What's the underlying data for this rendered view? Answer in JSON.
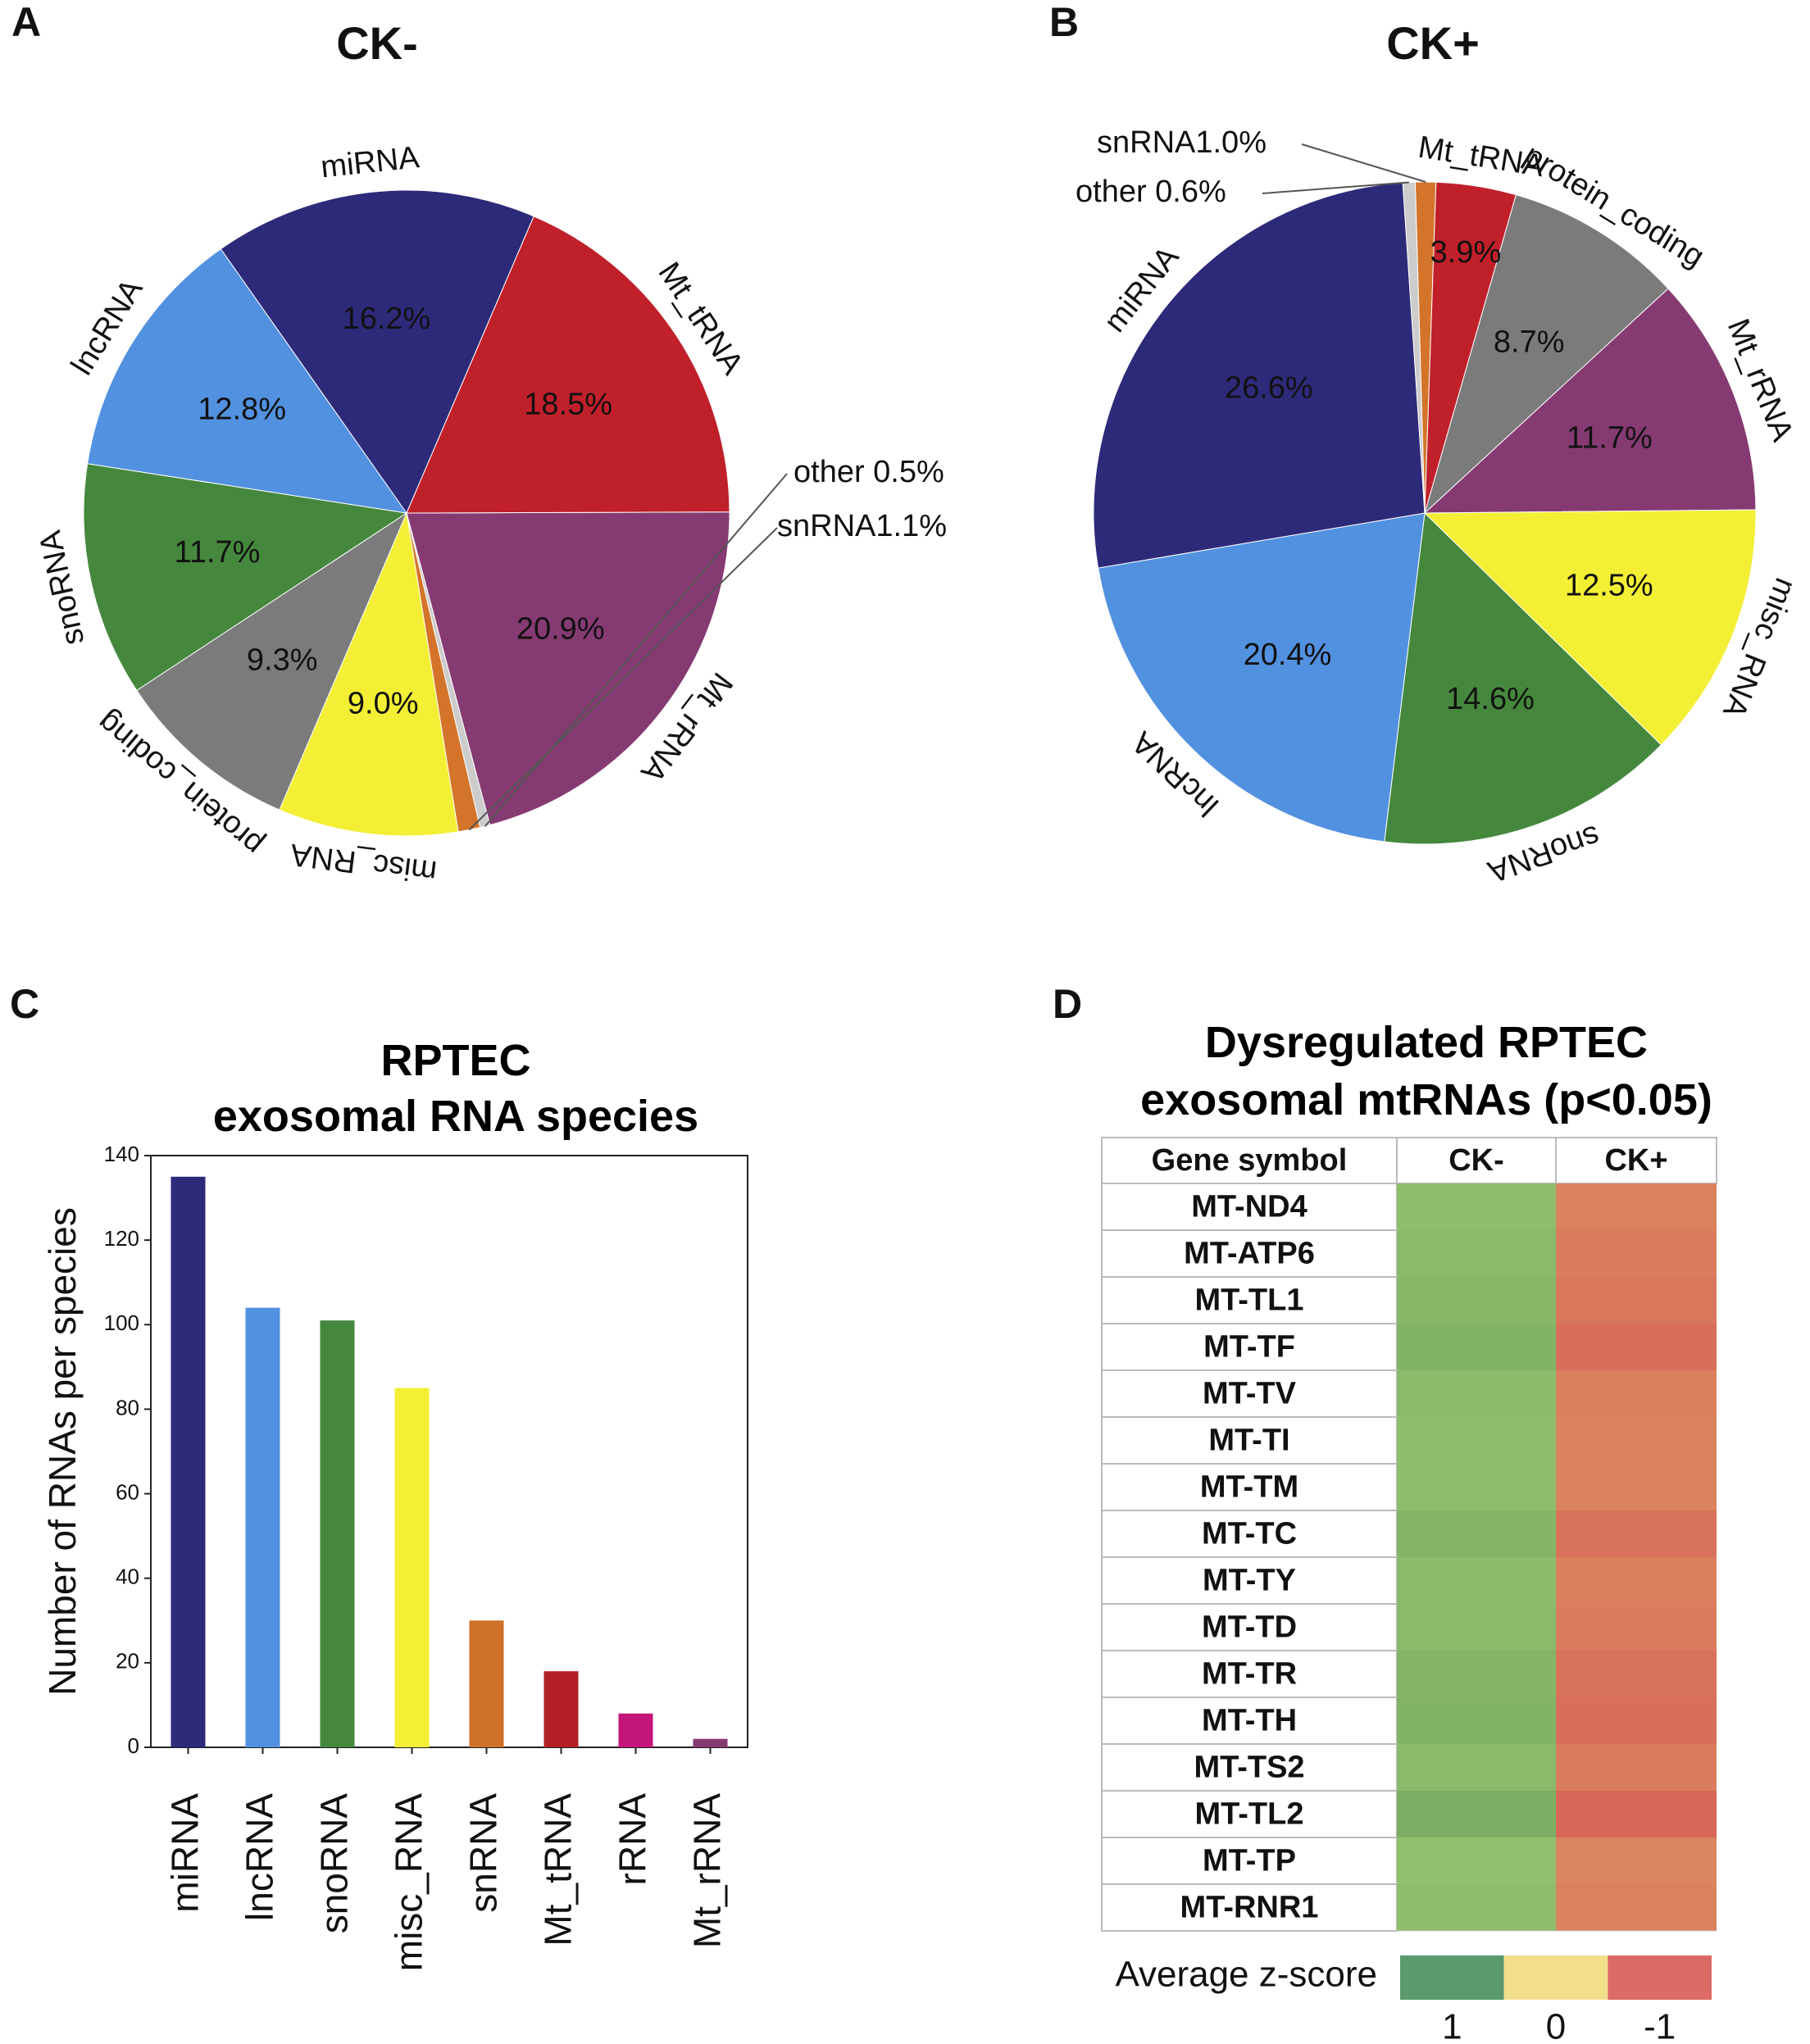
{
  "panels": {
    "a": {
      "letter": "A",
      "title": "CK-"
    },
    "b": {
      "letter": "B",
      "title": "CK+"
    },
    "c": {
      "letter": "C"
    },
    "d": {
      "letter": "D"
    }
  },
  "chart_data": [
    {
      "id": "pie_ck_minus",
      "type": "pie",
      "title": "CK-",
      "slices": [
        {
          "name": "Mt_rRNA",
          "value": 20.9,
          "label": "20.9%",
          "color": "#863a72"
        },
        {
          "name": "other",
          "value": 0.5,
          "label": "0.5%",
          "color": "#cccccc",
          "outside_text": "other 0.5%"
        },
        {
          "name": "snRNA",
          "value": 1.1,
          "label": "1.1%",
          "color": "#d3742a",
          "outside_text": "snRNA1.1%"
        },
        {
          "name": "misc_RNA",
          "value": 9.0,
          "label": "9.0%",
          "color": "#f3ef35"
        },
        {
          "name": "protein_coding",
          "value": 9.3,
          "label": "9.3%",
          "color": "#7b7b7b"
        },
        {
          "name": "snoRNA",
          "value": 11.7,
          "label": "11.7%",
          "color": "#45883d"
        },
        {
          "name": "lncRNA",
          "value": 12.8,
          "label": "12.8%",
          "color": "#5291df"
        },
        {
          "name": "miRNA",
          "value": 16.2,
          "label": "16.2%",
          "color": "#2e2a7a"
        },
        {
          "name": "Mt_tRNA",
          "value": 18.5,
          "label": "18.5%",
          "color": "#c0202a"
        }
      ]
    },
    {
      "id": "pie_ck_plus",
      "type": "pie",
      "title": "CK+",
      "slices": [
        {
          "name": "protein_coding",
          "value": 8.7,
          "label": "8.7%",
          "color": "#7b7b7b"
        },
        {
          "name": "Mt_rRNA",
          "value": 11.7,
          "label": "11.7%",
          "color": "#863a72"
        },
        {
          "name": "misc_RNA",
          "value": 12.5,
          "label": "12.5%",
          "color": "#f3ef35"
        },
        {
          "name": "snoRNA",
          "value": 14.6,
          "label": "14.6%",
          "color": "#45883d"
        },
        {
          "name": "lncRNA",
          "value": 20.4,
          "label": "20.4%",
          "color": "#5291df"
        },
        {
          "name": "miRNA",
          "value": 26.6,
          "label": "26.6%",
          "color": "#2e2a7a"
        },
        {
          "name": "other",
          "value": 0.6,
          "label": "0.6%",
          "color": "#cccccc",
          "outside_text": "other 0.6%"
        },
        {
          "name": "snRNA",
          "value": 1.0,
          "label": "1.0%",
          "color": "#d3742a",
          "outside_text": "snRNA1.0%"
        },
        {
          "name": "Mt_tRNA",
          "value": 3.9,
          "label": "3.9%",
          "color": "#c0202a"
        }
      ]
    },
    {
      "id": "bar_species",
      "type": "bar",
      "title": "RPTEC exosomal RNA species",
      "title_lines": [
        "RPTEC",
        "exosomal RNA species"
      ],
      "ylabel": "Number of RNAs per species",
      "xlabel": "",
      "ylim": [
        0,
        140
      ],
      "yticks": [
        0,
        20,
        40,
        60,
        80,
        100,
        120,
        140
      ],
      "categories": [
        "miRNA",
        "lncRNA",
        "snoRNA",
        "misc_RNA",
        "snRNA",
        "Mt_tRNA",
        "rRNA",
        "Mt_rRNA"
      ],
      "values": [
        135,
        104,
        101,
        85,
        30,
        18,
        8,
        2
      ],
      "colors": [
        "#2e2a7a",
        "#5291df",
        "#45883d",
        "#f3ef35",
        "#cf7128",
        "#b32028",
        "#c4157a",
        "#863a72"
      ]
    },
    {
      "id": "heatmap_mtrna",
      "type": "heatmap",
      "title": "Dysregulated RPTEC exosomal mtRNAs (p<0.05)",
      "title_lines": [
        "Dysregulated RPTEC",
        "exosomal mtRNAs (p<0.05)"
      ],
      "header": [
        "Gene symbol",
        "CK-",
        "CK+"
      ],
      "rows": [
        {
          "gene": "MT-ND4",
          "ck_minus": 0.78,
          "ck_plus": -0.78
        },
        {
          "gene": "MT-ATP6",
          "ck_minus": 0.82,
          "ck_plus": -0.82
        },
        {
          "gene": "MT-TL1",
          "ck_minus": 0.85,
          "ck_plus": -0.85
        },
        {
          "gene": "MT-TF",
          "ck_minus": 0.9,
          "ck_plus": -0.9
        },
        {
          "gene": "MT-TV",
          "ck_minus": 0.8,
          "ck_plus": -0.8
        },
        {
          "gene": "MT-TI",
          "ck_minus": 0.78,
          "ck_plus": -0.78
        },
        {
          "gene": "MT-TM",
          "ck_minus": 0.78,
          "ck_plus": -0.78
        },
        {
          "gene": "MT-TC",
          "ck_minus": 0.88,
          "ck_plus": -0.88
        },
        {
          "gene": "MT-TY",
          "ck_minus": 0.8,
          "ck_plus": -0.8
        },
        {
          "gene": "MT-TD",
          "ck_minus": 0.82,
          "ck_plus": -0.82
        },
        {
          "gene": "MT-TR",
          "ck_minus": 0.88,
          "ck_plus": -0.88
        },
        {
          "gene": "MT-TH",
          "ck_minus": 0.9,
          "ck_plus": -0.9
        },
        {
          "gene": "MT-TS2",
          "ck_minus": 0.82,
          "ck_plus": -0.82
        },
        {
          "gene": "MT-TL2",
          "ck_minus": 0.95,
          "ck_plus": -0.95
        },
        {
          "gene": "MT-TP",
          "ck_minus": 0.75,
          "ck_plus": -0.75
        },
        {
          "gene": "MT-RNR1",
          "ck_minus": 0.78,
          "ck_plus": -0.78
        }
      ],
      "legend": {
        "label": "Average z-score",
        "ticks": [
          "1",
          "0",
          "-1"
        ],
        "colors": [
          "#5a9a6c",
          "#f2df8c",
          "#dd6b65"
        ]
      }
    }
  ]
}
